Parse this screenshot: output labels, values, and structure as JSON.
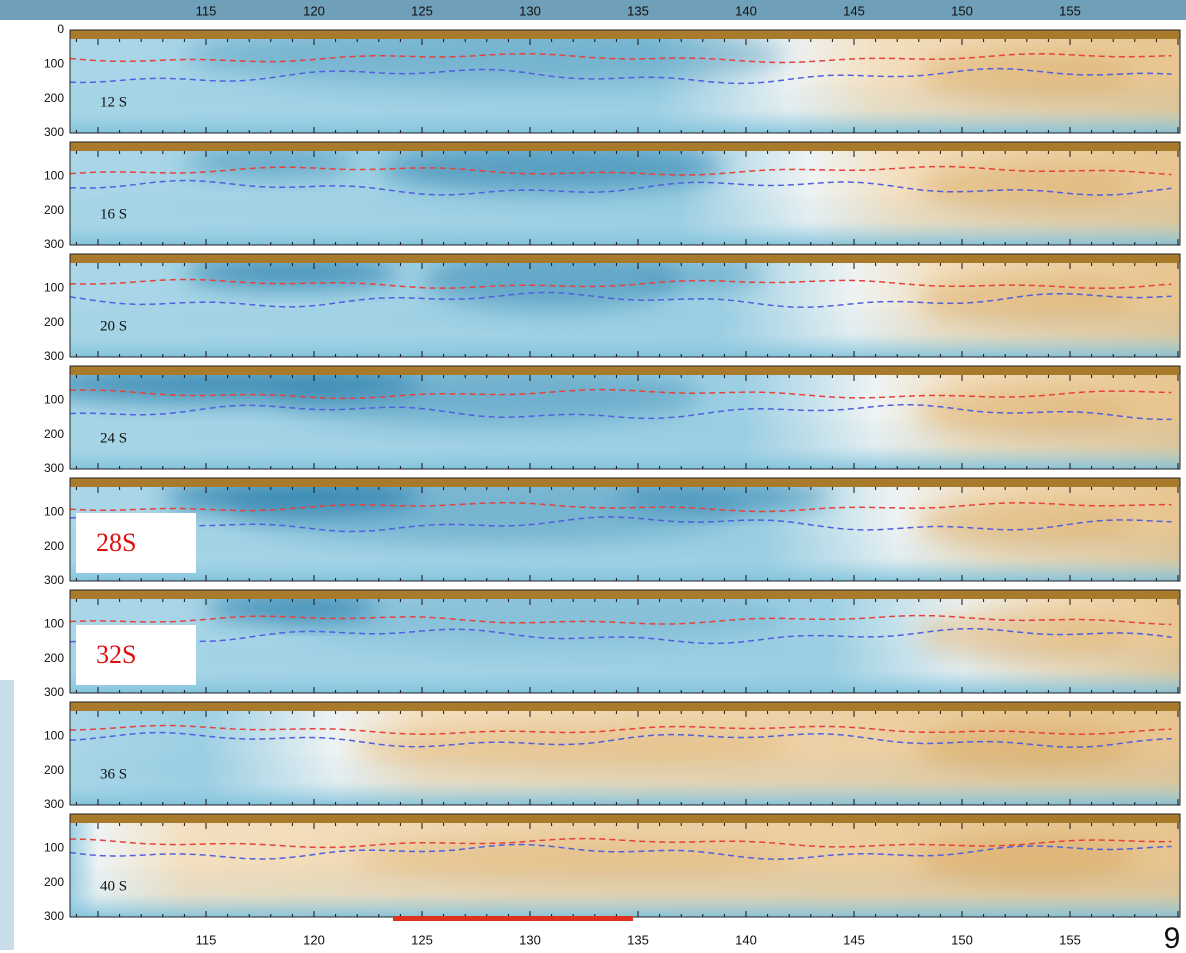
{
  "x_axis": {
    "top_ticks": [
      115,
      120,
      125,
      130,
      135,
      140,
      145,
      150,
      155
    ],
    "bottom_ticks": [
      115,
      120,
      125,
      130,
      135,
      140,
      145,
      150,
      155
    ]
  },
  "panels": [
    {
      "label": "12 S",
      "y_ticks": [
        0,
        100,
        200,
        300
      ]
    },
    {
      "label": "16 S",
      "y_ticks": [
        100,
        200,
        300
      ]
    },
    {
      "label": "20 S",
      "y_ticks": [
        100,
        200,
        300
      ]
    },
    {
      "label": "24 S",
      "y_ticks": [
        100,
        200,
        300
      ]
    },
    {
      "label": "28S",
      "y_ticks": [
        100,
        200,
        300
      ]
    },
    {
      "label": "32S",
      "y_ticks": [
        100,
        200,
        300
      ]
    },
    {
      "label": "36 S",
      "y_ticks": [
        100,
        200,
        300
      ]
    },
    {
      "label": "40 S",
      "y_ticks": [
        100,
        200,
        300
      ]
    }
  ],
  "slide_number": "9"
}
